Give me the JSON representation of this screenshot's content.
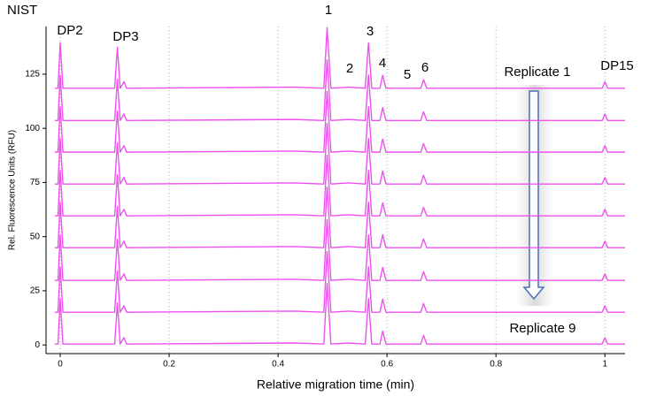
{
  "chart_data": {
    "type": "line",
    "title": "NIST",
    "xlabel": "Relative migration time (min)",
    "ylabel": "Rel. Fluorescence Units (RFU)",
    "annotations": [
      "DP2",
      "DP3",
      "1",
      "2",
      "3",
      "4",
      "5",
      "6",
      "DP15",
      "Replicate 1",
      "Replicate 9"
    ],
    "xlim": [
      -0.026,
      1.037
    ],
    "ylim": [
      -4,
      147
    ],
    "xticks": [
      0,
      0.2,
      0.4,
      0.6,
      0.8,
      1
    ],
    "yticks": [
      0,
      25,
      50,
      75,
      100,
      125
    ],
    "grid": "x",
    "x": [
      -0.01,
      -0.004,
      0,
      0.005,
      0.1,
      0.105,
      0.11,
      0.117,
      0.122,
      0.43,
      0.484,
      0.49,
      0.497,
      0.53,
      0.56,
      0.566,
      0.572,
      0.587,
      0.592,
      0.598,
      0.662,
      0.667,
      0.673,
      0.995,
      1.0,
      1.005,
      1.037
    ],
    "series": [
      {
        "color": "#f050f0",
        "values": [
          118.5,
          118.5,
          139.5,
          118.5,
          118.5,
          137.5,
          118.5,
          121.5,
          118.5,
          119,
          118.5,
          146.5,
          118.5,
          119,
          118.5,
          139.5,
          118.5,
          118.5,
          124.5,
          118.5,
          118.5,
          122.5,
          118.5,
          118.5,
          121.5,
          118.5,
          118.5
        ]
      },
      {
        "color": "#f050f0",
        "values": [
          103.6,
          103.6,
          124.6,
          103.6,
          103.6,
          122.6,
          103.6,
          106.6,
          103.6,
          104.1,
          103.6,
          131.6,
          103.6,
          104.1,
          103.6,
          124.6,
          103.6,
          103.6,
          109.6,
          103.6,
          103.6,
          107.6,
          103.6,
          103.6,
          106.6,
          103.6,
          103.6
        ]
      },
      {
        "color": "#f050f0",
        "values": [
          89,
          89,
          110,
          89,
          89,
          108,
          89,
          92,
          89,
          89.5,
          89,
          117,
          89,
          89.5,
          89,
          110,
          89,
          89,
          95,
          89,
          89,
          93,
          89,
          89,
          92,
          89,
          89
        ]
      },
      {
        "color": "#f050f0",
        "values": [
          74.3,
          74.3,
          95.3,
          74.3,
          74.3,
          93.3,
          74.3,
          77.3,
          74.3,
          74.8,
          74.3,
          102.3,
          74.3,
          74.8,
          74.3,
          95.3,
          74.3,
          74.3,
          80.3,
          74.3,
          74.3,
          78.3,
          74.3,
          74.3,
          77.3,
          74.3,
          74.3
        ]
      },
      {
        "color": "#f050f0",
        "values": [
          59.6,
          59.6,
          80.6,
          59.6,
          59.6,
          78.6,
          59.6,
          62.6,
          59.6,
          60.1,
          59.6,
          87.6,
          59.6,
          60.1,
          59.6,
          80.6,
          59.6,
          59.6,
          65.6,
          59.6,
          59.6,
          63.6,
          59.6,
          59.6,
          62.6,
          59.6,
          59.6
        ]
      },
      {
        "color": "#f050f0",
        "values": [
          44.9,
          44.9,
          65.9,
          44.9,
          44.9,
          63.9,
          44.9,
          47.9,
          44.9,
          45.4,
          44.9,
          72.9,
          44.9,
          45.4,
          44.9,
          65.9,
          44.9,
          44.9,
          50.9,
          44.9,
          44.9,
          48.9,
          44.9,
          44.9,
          47.9,
          44.9,
          44.9
        ]
      },
      {
        "color": "#f050f0",
        "values": [
          29.8,
          29.8,
          50.8,
          29.8,
          29.8,
          48.8,
          29.8,
          32.8,
          29.8,
          30.3,
          29.8,
          57.8,
          29.8,
          30.3,
          29.8,
          50.8,
          29.8,
          29.8,
          35.8,
          29.8,
          29.8,
          33.8,
          29.8,
          29.8,
          32.8,
          29.8,
          29.8
        ]
      },
      {
        "color": "#f050f0",
        "values": [
          15.1,
          15.1,
          36.1,
          15.1,
          15.1,
          34.1,
          15.1,
          18.1,
          15.1,
          15.6,
          15.1,
          43.1,
          15.1,
          15.6,
          15.1,
          36.1,
          15.1,
          15.1,
          21.1,
          15.1,
          15.1,
          19.1,
          15.1,
          15.1,
          18.1,
          15.1,
          15.1
        ]
      },
      {
        "color": "#f050f0",
        "values": [
          0.4,
          0.4,
          21.4,
          0.4,
          0.4,
          19.4,
          0.4,
          3.4,
          0.4,
          0.9,
          0.4,
          28.4,
          0.4,
          0.9,
          0.4,
          21.4,
          0.4,
          0.4,
          6.4,
          0.4,
          0.4,
          4.4,
          0.4,
          0.4,
          3.4,
          0.4,
          0.4
        ]
      }
    ]
  }
}
